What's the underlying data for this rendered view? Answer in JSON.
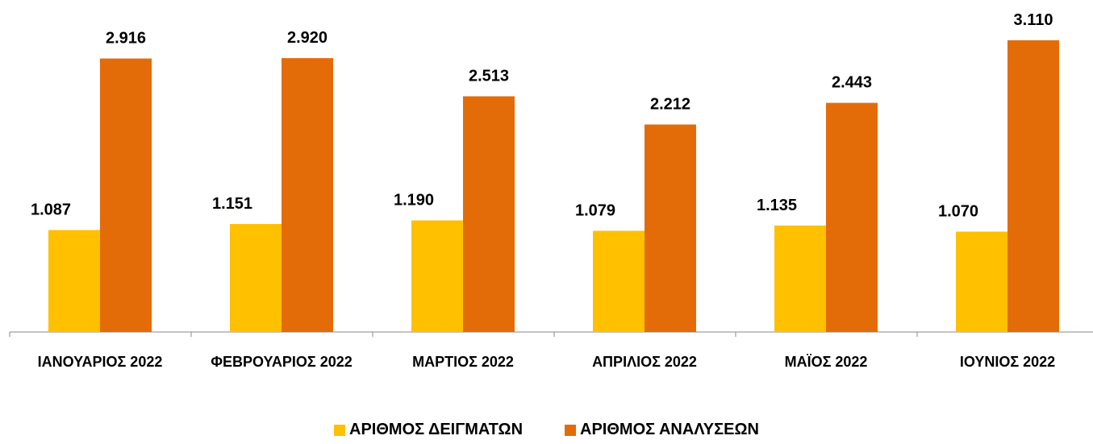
{
  "chart_data": {
    "type": "bar",
    "categories": [
      "ΙΑΝΟΥΑΡΙΟΣ 2022",
      "ΦΕΒΡΟΥΑΡΙΟΣ 2022",
      "ΜΑΡΤΙΟΣ 2022",
      "ΑΠΡΙΛΙΟΣ 2022",
      "ΜΑΪΟΣ 2022",
      "ΙΟΥΝΙΟΣ 2022"
    ],
    "series": [
      {
        "name": "ΑΡΙΘΜΟΣ ΔΕΙΓΜΑΤΩΝ",
        "color": "#FFC000",
        "values": [
          1087,
          1151,
          1190,
          1079,
          1135,
          1070
        ],
        "value_labels": [
          "1.087",
          "1.151",
          "1.190",
          "1.079",
          "1.135",
          "1.070"
        ]
      },
      {
        "name": "ΑΡΙΘΜΟΣ ΑΝΑΛΥΣΕΩΝ",
        "color": "#E36C09",
        "values": [
          2916,
          2920,
          2513,
          2212,
          2443,
          3110
        ],
        "value_labels": [
          "2.916",
          "2.920",
          "2.513",
          "2.212",
          "2.443",
          "3.110"
        ]
      }
    ],
    "legend": "bottom"
  }
}
